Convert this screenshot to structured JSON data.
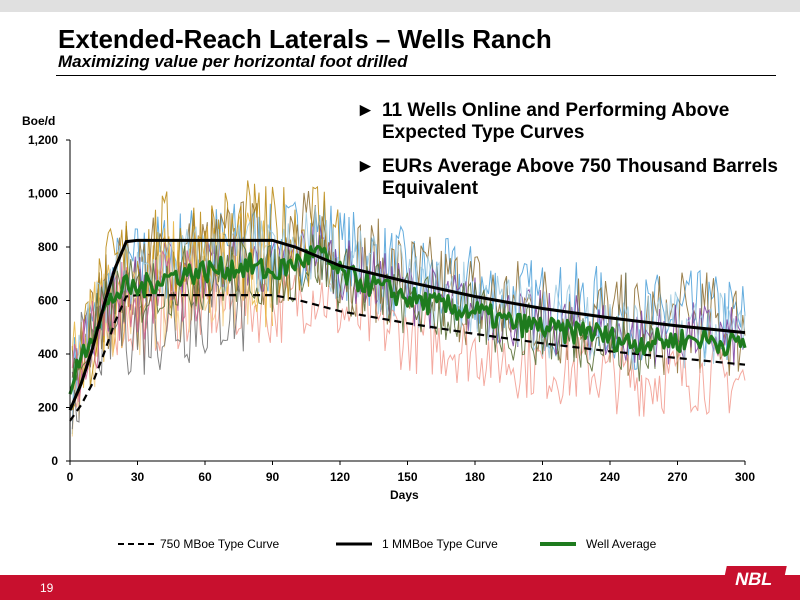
{
  "slide": {
    "title": "Extended-Reach Laterals – Wells Ranch",
    "subtitle": "Maximizing value per horizontal foot drilled",
    "page_number": "19",
    "logo_text": "NBL",
    "bullets": [
      {
        "marker": "►",
        "text": "11 Wells Online and Performing Above Expected Type Curves"
      },
      {
        "marker": "►",
        "text": "EURs Average Above 750 Thousand Barrels Equivalent"
      }
    ]
  },
  "chart_data": {
    "type": "line",
    "xlabel": "Days",
    "ylabel": "Boe/d",
    "xlim": [
      0,
      300
    ],
    "ylim": [
      0,
      1200
    ],
    "x_ticks": [
      0,
      30,
      60,
      90,
      120,
      150,
      180,
      210,
      240,
      270,
      300
    ],
    "y_ticks": [
      0,
      200,
      400,
      600,
      800,
      1000,
      1200
    ],
    "y_tick_labels": [
      "0",
      "200",
      "400",
      "600",
      "800",
      "1,000",
      "1,200"
    ],
    "grid": false,
    "legend_position": "bottom",
    "colors": {
      "type_curve_750": "#000000",
      "type_curve_1mm": "#000000",
      "well_average": "#1e7b1e",
      "individual_wells": [
        "#4a9fd8",
        "#8b6b2e",
        "#f29b8f",
        "#7a3fa0",
        "#e8b33a",
        "#f5d08a",
        "#6d6d6d",
        "#b8860b",
        "#9ecae1",
        "#d06090",
        "#556b2f"
      ]
    },
    "series": [
      {
        "name": "750 MBoe Type Curve",
        "style": "dashed",
        "x": [
          0,
          5,
          10,
          15,
          20,
          25,
          30,
          60,
          90,
          100,
          120,
          150,
          180,
          210,
          240,
          270,
          300
        ],
        "y": [
          150,
          210,
          290,
          400,
          520,
          615,
          620,
          620,
          620,
          605,
          560,
          515,
          475,
          440,
          410,
          385,
          360
        ]
      },
      {
        "name": "1 MMBoe Type Curve",
        "style": "solid",
        "x": [
          0,
          5,
          10,
          15,
          20,
          25,
          30,
          60,
          90,
          100,
          120,
          150,
          180,
          210,
          240,
          270,
          300
        ],
        "y": [
          190,
          290,
          420,
          580,
          720,
          820,
          825,
          825,
          825,
          800,
          730,
          670,
          615,
          570,
          535,
          505,
          480
        ]
      },
      {
        "name": "Well Average",
        "style": "solid-thick",
        "x": [
          0,
          5,
          10,
          15,
          20,
          25,
          30,
          40,
          50,
          60,
          70,
          80,
          90,
          100,
          110,
          120,
          130,
          140,
          150,
          160,
          170,
          180,
          190,
          200,
          210,
          220,
          230,
          240,
          250,
          260,
          270,
          280,
          290,
          300
        ],
        "y": [
          250,
          390,
          480,
          560,
          620,
          650,
          640,
          680,
          700,
          710,
          720,
          730,
          700,
          740,
          780,
          700,
          670,
          640,
          610,
          590,
          570,
          560,
          530,
          510,
          500,
          480,
          490,
          460,
          440,
          450,
          450,
          460,
          440,
          440
        ]
      }
    ]
  }
}
